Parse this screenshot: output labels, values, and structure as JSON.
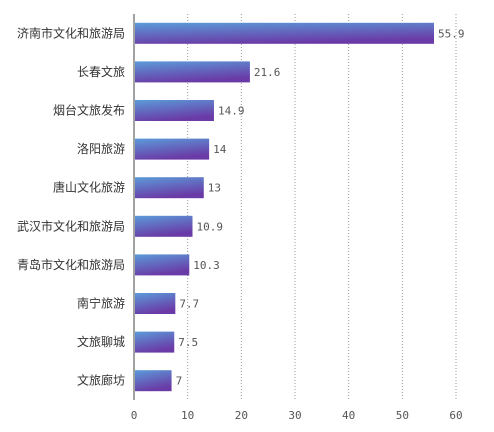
{
  "chart_data": {
    "type": "bar",
    "orientation": "horizontal",
    "categories": [
      "济南市文化和旅游局",
      "长春文旅",
      "烟台文旅发布",
      "洛阳旅游",
      "唐山文化旅游",
      "武汉市文化和旅游局",
      "青岛市文化和旅游局",
      "南宁旅游",
      "文旅聊城",
      "文旅廊坊"
    ],
    "values": [
      55.9,
      21.6,
      14.9,
      14,
      13,
      10.9,
      10.3,
      7.7,
      7.5,
      7
    ],
    "value_labels": [
      "55.9",
      "21.6",
      "14.9",
      "14",
      "13",
      "10.9",
      "10.3",
      "7.7",
      "7.5",
      "7"
    ],
    "x_ticks": [
      "0",
      "10",
      "20",
      "30",
      "40",
      "50",
      "60"
    ],
    "xlim": [
      0,
      60
    ],
    "grid": "vertical dotted",
    "title": "",
    "xlabel": "",
    "ylabel": "",
    "bar_gradient": [
      "#5b9bd9",
      "#6a3aa6"
    ]
  }
}
